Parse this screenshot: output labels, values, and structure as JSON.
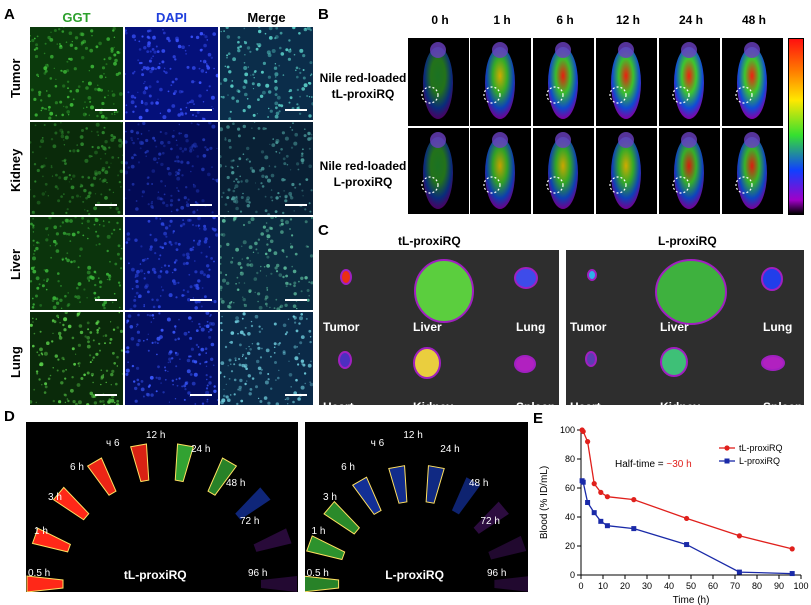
{
  "panel_letters": {
    "a": "A",
    "b": "B",
    "c": "C",
    "d": "D",
    "e": "E"
  },
  "panel_a": {
    "columns": [
      {
        "label": "GGT",
        "color": "#2ca02c"
      },
      {
        "label": "DAPI",
        "color": "#1f3fdc"
      },
      {
        "label": "Merge",
        "color": "#000000"
      }
    ],
    "rows": [
      "Tumor",
      "Kidney",
      "Liver",
      "Lung"
    ]
  },
  "panel_b": {
    "times": [
      "0 h",
      "1 h",
      "6 h",
      "12 h",
      "24 h",
      "48 h"
    ],
    "groups": [
      "Nile red-loaded\ntL-proxiRQ",
      "Nile red-loaded\nL-proxiRQ"
    ],
    "group_lines": [
      [
        "Nile red-loaded",
        "tL-proxiRQ"
      ],
      [
        "Nile red-loaded",
        "L-proxiRQ"
      ]
    ]
  },
  "panel_c": {
    "titles": [
      "tL-proxiRQ",
      "L-proxiRQ"
    ],
    "organs": [
      "Tumor",
      "Liver",
      "Lung",
      "Heart",
      "Kidney",
      "Spleen"
    ]
  },
  "panel_d": {
    "left_label": "tL-proxiRQ",
    "right_label": "L-proxiRQ",
    "times": [
      "0.5 h",
      "1 h",
      "3 h",
      "6 h",
      "9 h",
      "12 h",
      "24 h",
      "48 h",
      "72 h",
      "96 h"
    ],
    "left_times": [
      "0.5 h",
      "1 h",
      "3 h",
      "6 h",
      "ч 6",
      "12 h",
      "24 h",
      "48 h",
      "72 h",
      "96 h"
    ],
    "right_times": [
      "0.5 h",
      "1 h",
      "3 h",
      "6 h",
      "ч 6",
      "12 h",
      "24 h",
      "48 h",
      "72 h",
      "96 h"
    ]
  },
  "chart_data": {
    "type": "line",
    "xlabel": "Time (h)",
    "ylabel": "Blood (% ID/mL)",
    "xlim": [
      0,
      100
    ],
    "ylim": [
      0,
      100
    ],
    "xticks": [
      0,
      10,
      20,
      30,
      40,
      50,
      60,
      70,
      80,
      90,
      100
    ],
    "yticks": [
      0,
      20,
      40,
      60,
      80,
      100
    ],
    "annotation": {
      "prefix": "Half-time = ",
      "value": "~30 h",
      "value_color": "#e0201c"
    },
    "legend_position": "top-right",
    "series": [
      {
        "name": "tL-proxiRQ",
        "color": "#e0201c",
        "marker": "circle",
        "x": [
          0.5,
          1,
          3,
          6,
          9,
          12,
          24,
          48,
          72,
          96
        ],
        "y": [
          100,
          99,
          92,
          63,
          57,
          54,
          52,
          39,
          27,
          18
        ]
      },
      {
        "name": "L-proxiRQ",
        "color": "#1a2aa8",
        "marker": "square",
        "x": [
          0.5,
          1,
          3,
          6,
          9,
          12,
          24,
          48,
          72,
          96
        ],
        "y": [
          65,
          64,
          50,
          43,
          37,
          34,
          32,
          21,
          2,
          1
        ]
      }
    ]
  }
}
